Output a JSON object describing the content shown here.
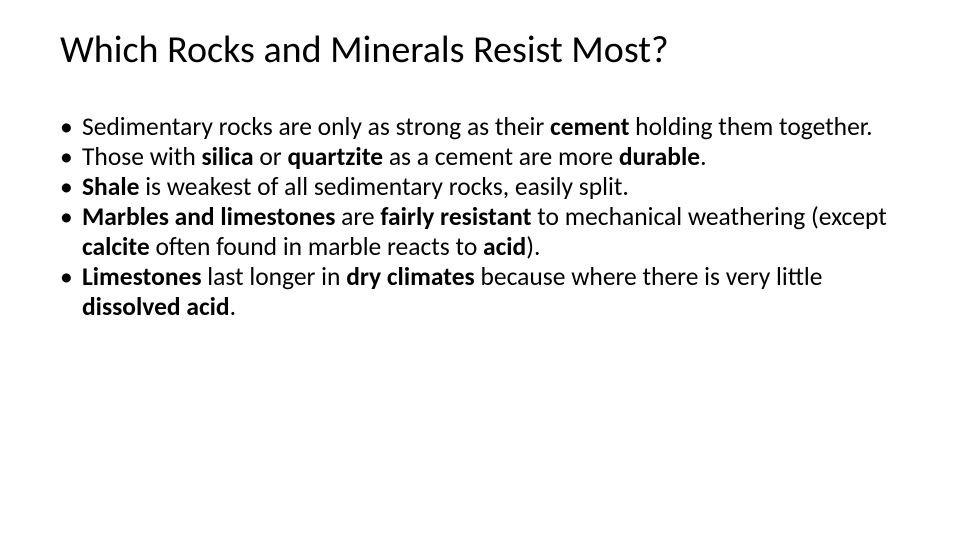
{
  "slide": {
    "background_color": "#ffffff",
    "text_color": "#000000",
    "font_family": "Calibri",
    "title": {
      "text": "Which Rocks and Minerals Resist Most?",
      "font_size_pt": 38,
      "font_weight": 400
    },
    "body": {
      "font_size_pt": 25.5,
      "line_height": 1.18,
      "bullet_glyph": "•",
      "items": [
        {
          "runs": [
            {
              "t": "Sedimentary rocks are only as strong as their ",
              "b": false
            },
            {
              "t": "cement",
              "b": true
            },
            {
              "t": " holding them together.",
              "b": false
            }
          ]
        },
        {
          "runs": [
            {
              "t": "Those with ",
              "b": false
            },
            {
              "t": "silica",
              "b": true
            },
            {
              "t": " or ",
              "b": false
            },
            {
              "t": "quartzite",
              "b": true
            },
            {
              "t": " as a cement are more ",
              "b": false
            },
            {
              "t": "durable",
              "b": true
            },
            {
              "t": ".",
              "b": false
            }
          ]
        },
        {
          "runs": [
            {
              "t": "Shale",
              "b": true
            },
            {
              "t": " is weakest of all sedimentary rocks, easily split.",
              "b": false
            }
          ]
        },
        {
          "runs": [
            {
              "t": "Marbles and limestones ",
              "b": true
            },
            {
              "t": "are ",
              "b": false
            },
            {
              "t": "fairly resistant ",
              "b": true
            },
            {
              "t": "to mechanical weathering  (except ",
              "b": false
            },
            {
              "t": "calcite ",
              "b": true
            },
            {
              "t": "often found in marble reacts to ",
              "b": false
            },
            {
              "t": "acid",
              "b": true
            },
            {
              "t": ").",
              "b": false
            }
          ]
        },
        {
          "runs": [
            {
              "t": "Limestones ",
              "b": true
            },
            {
              "t": "last longer in ",
              "b": false
            },
            {
              "t": "dry climates ",
              "b": true
            },
            {
              "t": "because where there is very little ",
              "b": false
            },
            {
              "t": "dissolved acid",
              "b": true
            },
            {
              "t": ".",
              "b": false
            }
          ]
        }
      ]
    }
  }
}
